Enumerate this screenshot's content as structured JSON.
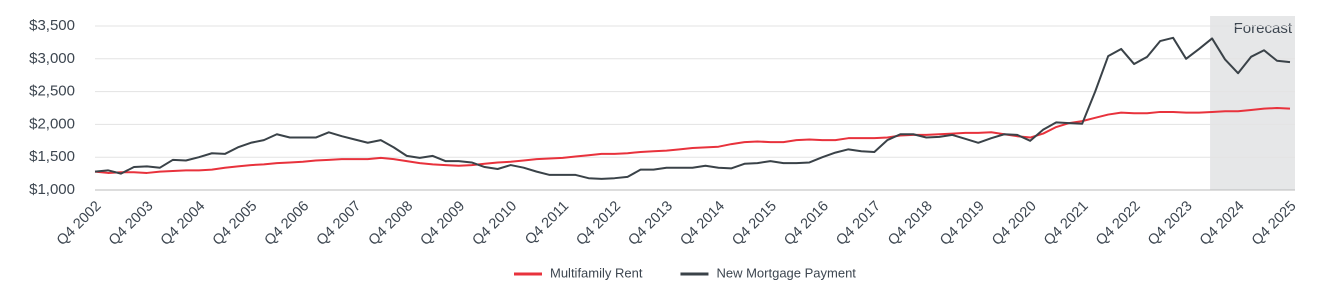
{
  "chart_data": {
    "type": "line",
    "categories": [
      "Q4 2002",
      null,
      null,
      null,
      "Q4 2003",
      null,
      null,
      null,
      "Q4 2004",
      null,
      null,
      null,
      "Q4 2005",
      null,
      null,
      null,
      "Q4 2006",
      null,
      null,
      null,
      "Q4 2007",
      null,
      null,
      null,
      "Q4 2008",
      null,
      null,
      null,
      "Q4 2009",
      null,
      null,
      null,
      "Q4 2010",
      null,
      null,
      null,
      "Q4 2011",
      null,
      null,
      null,
      "Q4 2012",
      null,
      null,
      null,
      "Q4 2013",
      null,
      null,
      null,
      "Q4 2014",
      null,
      null,
      null,
      "Q4 2015",
      null,
      null,
      null,
      "Q4 2016",
      null,
      null,
      null,
      "Q4 2017",
      null,
      null,
      null,
      "Q4 2018",
      null,
      null,
      null,
      "Q4 2019",
      null,
      null,
      null,
      "Q4 2020",
      null,
      null,
      null,
      "Q4 2021",
      null,
      null,
      null,
      "Q4 2022",
      null,
      null,
      null,
      "Q4 2023",
      null,
      null,
      null,
      "Q4 2024",
      null,
      null,
      null,
      "Q4 2025"
    ],
    "series": [
      {
        "name": "Multifamily Rent",
        "color": "#e8323c",
        "values": [
          1280,
          1260,
          1270,
          1270,
          1260,
          1280,
          1290,
          1300,
          1300,
          1310,
          1340,
          1360,
          1380,
          1390,
          1410,
          1420,
          1430,
          1450,
          1460,
          1470,
          1470,
          1470,
          1490,
          1470,
          1440,
          1410,
          1390,
          1380,
          1370,
          1380,
          1400,
          1420,
          1430,
          1450,
          1470,
          1480,
          1490,
          1510,
          1530,
          1550,
          1550,
          1560,
          1580,
          1590,
          1600,
          1620,
          1640,
          1650,
          1660,
          1700,
          1730,
          1740,
          1730,
          1730,
          1760,
          1770,
          1760,
          1760,
          1790,
          1790,
          1790,
          1800,
          1830,
          1840,
          1840,
          1850,
          1860,
          1870,
          1870,
          1880,
          1850,
          1820,
          1800,
          1860,
          1960,
          2020,
          2050,
          2100,
          2150,
          2180,
          2170,
          2170,
          2190,
          2190,
          2180,
          2180,
          2190,
          2200,
          2200,
          2220,
          2240,
          2250,
          2240
        ]
      },
      {
        "name": "New Mortgage Payment",
        "color": "#3a4248",
        "values": [
          1280,
          1300,
          1250,
          1350,
          1360,
          1340,
          1460,
          1450,
          1500,
          1560,
          1550,
          1650,
          1720,
          1760,
          1850,
          1800,
          1800,
          1800,
          1880,
          1820,
          1770,
          1720,
          1760,
          1650,
          1520,
          1490,
          1520,
          1440,
          1440,
          1420,
          1350,
          1320,
          1380,
          1340,
          1280,
          1230,
          1230,
          1230,
          1180,
          1170,
          1180,
          1200,
          1310,
          1310,
          1340,
          1340,
          1340,
          1370,
          1340,
          1330,
          1400,
          1410,
          1440,
          1410,
          1410,
          1420,
          1500,
          1570,
          1620,
          1590,
          1580,
          1760,
          1850,
          1850,
          1800,
          1810,
          1840,
          1780,
          1720,
          1790,
          1850,
          1840,
          1750,
          1920,
          2030,
          2020,
          2010,
          2500,
          3040,
          3150,
          2920,
          3030,
          3270,
          3320,
          3000,
          3150,
          3310,
          2990,
          2780,
          3030,
          3130,
          2970,
          2950
        ]
      }
    ],
    "ylim": [
      1000,
      3500
    ],
    "yticks": [
      {
        "value": 1000,
        "label": "$1,000"
      },
      {
        "value": 1500,
        "label": "$1,500"
      },
      {
        "value": 2000,
        "label": "$2,000"
      },
      {
        "value": 2500,
        "label": "$2,500"
      },
      {
        "value": 3000,
        "label": "$3,000"
      },
      {
        "value": 3500,
        "label": "$3,500"
      }
    ],
    "grid": true,
    "legend": "bottom",
    "annotations": [
      {
        "text": "Forecast",
        "from": 86,
        "to": 92
      }
    ]
  }
}
